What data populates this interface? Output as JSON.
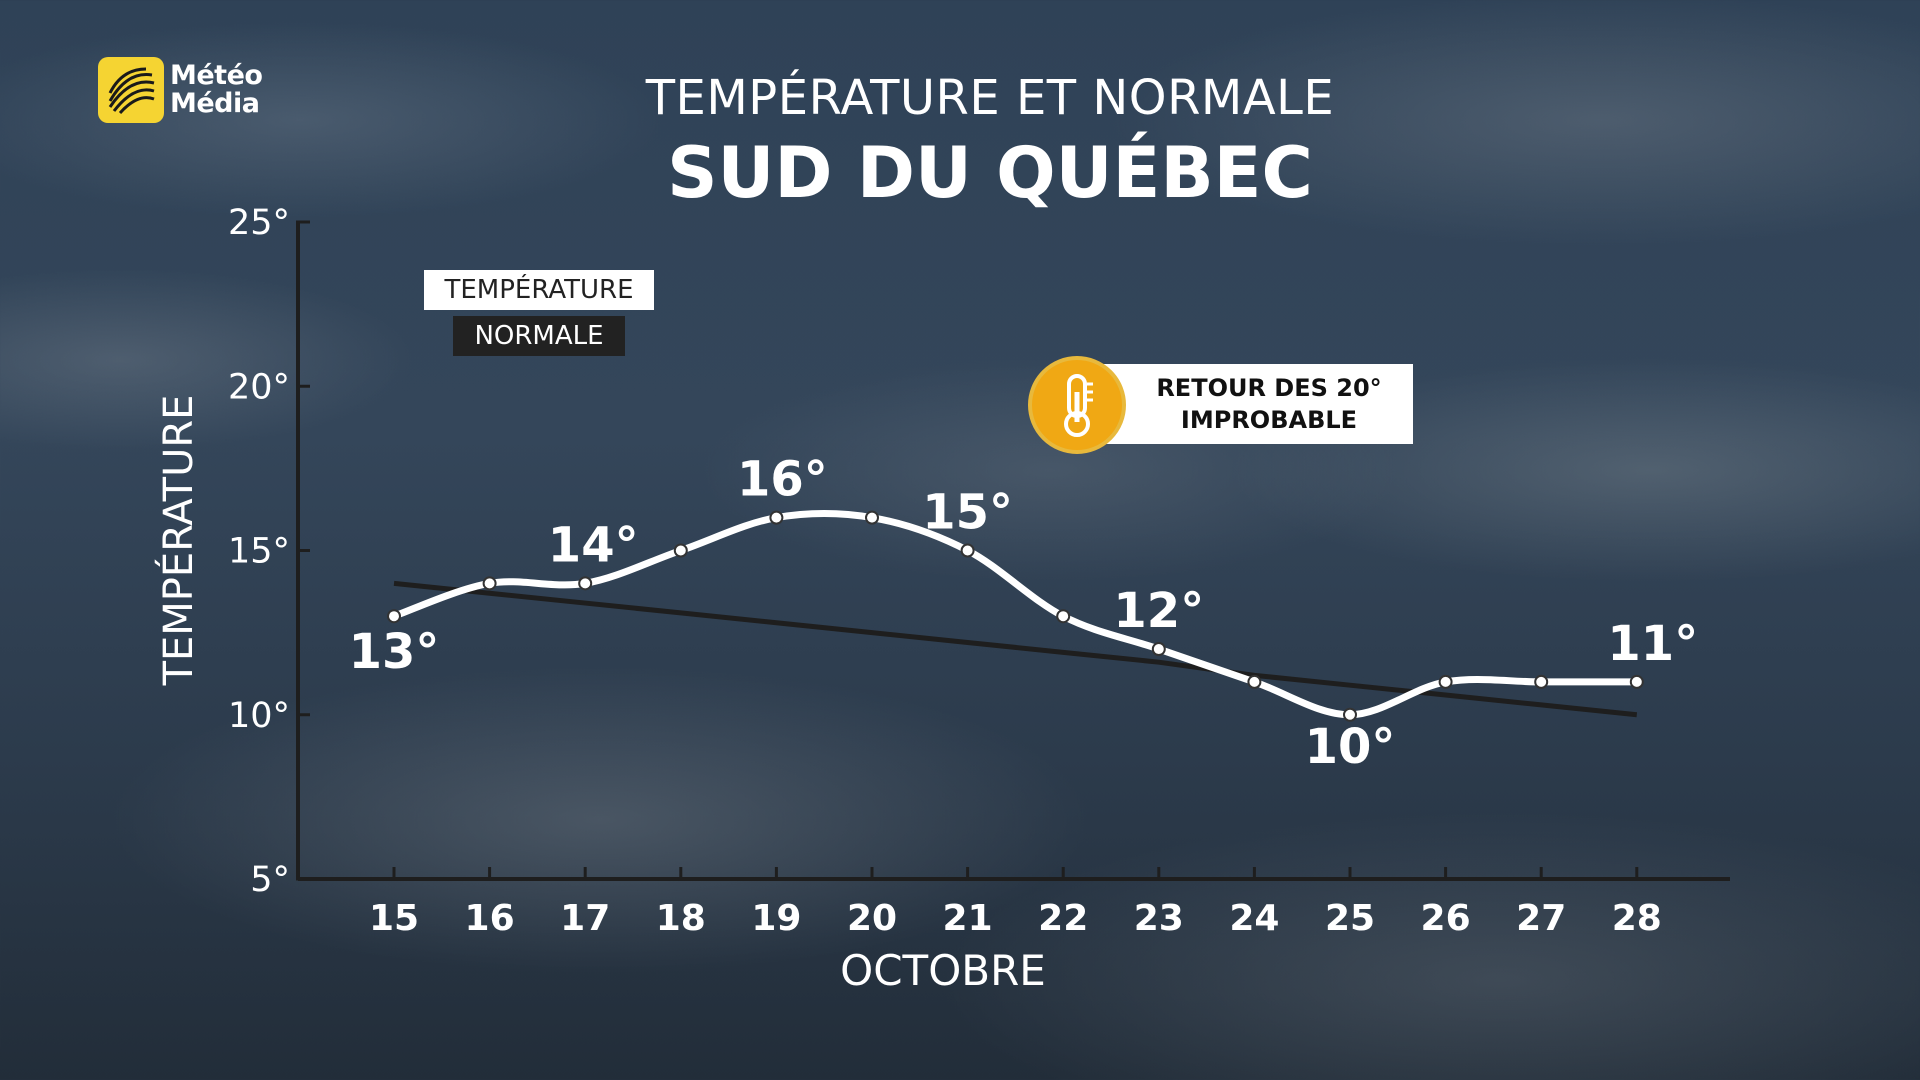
{
  "brand": {
    "logo_line1": "Météo",
    "logo_line2": "Média",
    "accent_color": "#f5d432"
  },
  "header": {
    "title": "TEMPÉRATURE ET NORMALE",
    "region": "SUD DU QUÉBEC"
  },
  "legend": {
    "temperature_label": "TEMPÉRATURE",
    "normal_label": "NORMALE"
  },
  "alert": {
    "line1": "RETOUR DES 20°",
    "line2": "IMPROBABLE",
    "icon": "thermometer-icon",
    "color": "#f0a814"
  },
  "chart_data": {
    "type": "line",
    "title": "TEMPÉRATURE ET NORMALE",
    "subtitle": "SUD DU QUÉBEC",
    "xlabel": "OCTOBRE",
    "ylabel": "TEMPÉRATURE",
    "x": [
      15,
      16,
      17,
      18,
      19,
      20,
      21,
      22,
      23,
      24,
      25,
      26,
      27,
      28
    ],
    "ylim": [
      5,
      25
    ],
    "yticks": [
      "5°",
      "10°",
      "15°",
      "20°",
      "25°"
    ],
    "series": [
      {
        "name": "TEMPÉRATURE",
        "color": "#ffffff",
        "values": [
          13,
          14,
          14,
          15,
          16,
          16,
          15,
          13,
          12,
          11,
          10,
          11,
          11,
          11
        ]
      },
      {
        "name": "NORMALE",
        "color": "#222222",
        "values": [
          14,
          13.7,
          13.4,
          13.1,
          12.8,
          12.5,
          12.2,
          11.9,
          11.6,
          11.2,
          10.9,
          10.6,
          10.3,
          10
        ]
      }
    ],
    "annotations": [
      {
        "x": 15,
        "text": "13°"
      },
      {
        "x": 17,
        "text": "14°"
      },
      {
        "x": 19,
        "text": "16°"
      },
      {
        "x": 21,
        "text": "15°"
      },
      {
        "x": 23,
        "text": "12°"
      },
      {
        "x": 25,
        "text": "10°"
      },
      {
        "x": 28,
        "text": "11°"
      }
    ]
  }
}
